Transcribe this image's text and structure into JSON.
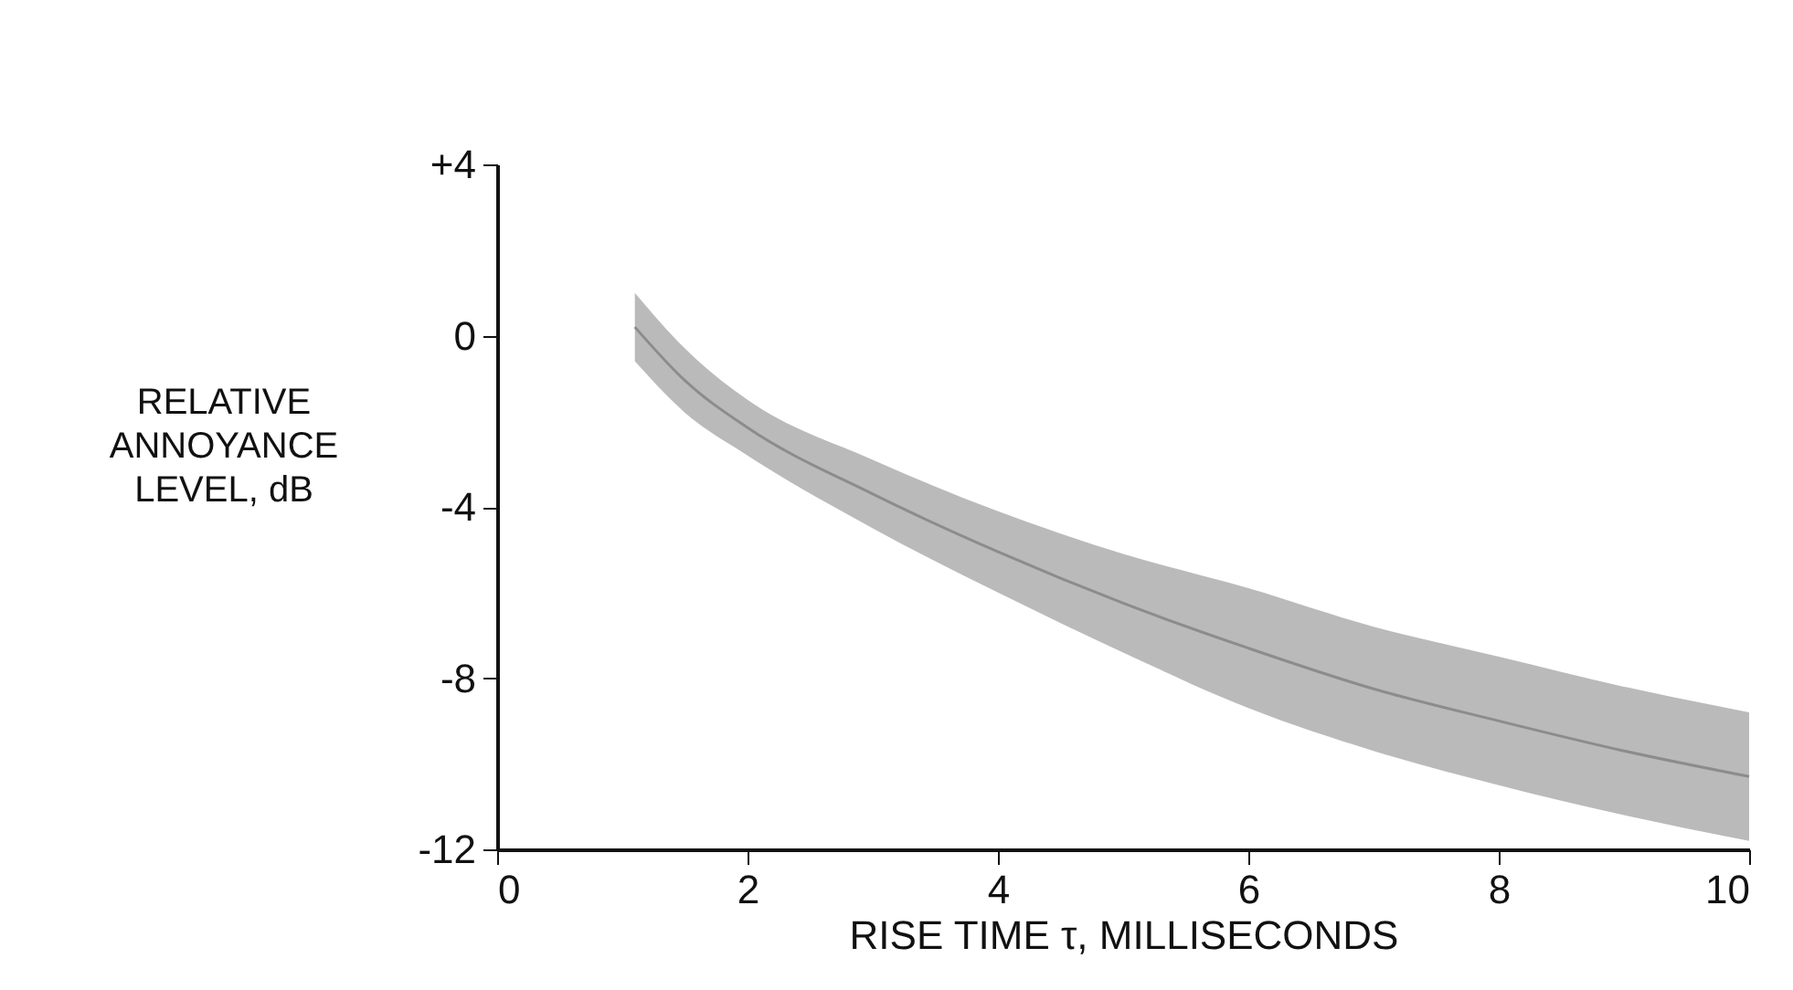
{
  "chart_data": {
    "type": "line",
    "xlabel": "RISE TIME τ, MILLISECONDS",
    "ylabel": "RELATIVE\nANNOYANCE\nLEVEL, dB",
    "series": [
      {
        "color": "#8c8c8c",
        "x": [
          1.1,
          1.5,
          2,
          3,
          4,
          5,
          6,
          7,
          8,
          9,
          10
        ],
        "values": [
          0.2,
          -1.05,
          -2.15,
          -3.7,
          -5.05,
          -6.25,
          -7.3,
          -8.25,
          -9.0,
          -9.7,
          -10.3
        ],
        "upper": [
          1.0,
          -0.3,
          -1.5,
          -2.9,
          -4.1,
          -5.1,
          -5.9,
          -6.8,
          -7.5,
          -8.2,
          -8.8
        ],
        "lower": [
          -0.6,
          -1.8,
          -2.8,
          -4.5,
          -6.0,
          -7.4,
          -8.7,
          -9.7,
          -10.5,
          -11.2,
          -11.8
        ]
      }
    ],
    "xlim": [
      0,
      10
    ],
    "xticks": [
      0,
      2,
      4,
      6,
      8,
      10
    ],
    "ylim": [
      -12,
      4
    ],
    "yticks": [
      {
        "value": 4,
        "label": "+4"
      },
      0,
      -4,
      -8,
      -12
    ],
    "grid": false
  }
}
